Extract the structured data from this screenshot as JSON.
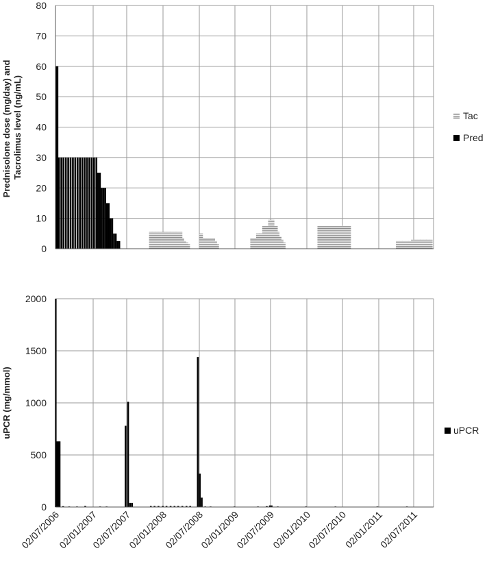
{
  "chart_data": [
    {
      "type": "bar",
      "ylabel": "Prednisolone dose (mg/day) and Tacrolimus level (ng/mL)",
      "ylabel_lines": [
        "Prednisolone dose (mg/day) and",
        "Tacrolimus level (ng/mL)"
      ],
      "ylim": [
        0,
        80
      ],
      "yticks": [
        0,
        10,
        20,
        30,
        40,
        50,
        60,
        70,
        80
      ],
      "xlim": [
        "2006-07-02",
        "2011-10-15"
      ],
      "grid": true,
      "legend_position": "right",
      "series": [
        {
          "name": "Tac",
          "pattern": "horizontal-stripes",
          "color": "#8c8c8c",
          "points": [
            [
              "2007-11-01",
              5.5
            ],
            [
              "2007-11-15",
              5.5
            ],
            [
              "2007-12-01",
              5.5
            ],
            [
              "2007-12-15",
              5.5
            ],
            [
              "2008-01-01",
              5.5
            ],
            [
              "2008-01-15",
              5.5
            ],
            [
              "2008-02-01",
              5.5
            ],
            [
              "2008-02-15",
              5.5
            ],
            [
              "2008-03-01",
              5.5
            ],
            [
              "2008-03-15",
              5.5
            ],
            [
              "2008-04-01",
              5.5
            ],
            [
              "2008-04-10",
              3.5
            ],
            [
              "2008-04-20",
              2.5
            ],
            [
              "2008-05-01",
              2.0
            ],
            [
              "2008-05-10",
              1.5
            ],
            [
              "2008-07-15",
              5.0
            ],
            [
              "2008-07-25",
              3.5
            ],
            [
              "2008-08-05",
              3.5
            ],
            [
              "2008-08-15",
              3.5
            ],
            [
              "2008-08-25",
              3.5
            ],
            [
              "2008-09-05",
              3.5
            ],
            [
              "2008-09-15",
              3.5
            ],
            [
              "2008-09-25",
              2.5
            ],
            [
              "2008-10-05",
              1.5
            ],
            [
              "2009-04-01",
              3.5
            ],
            [
              "2009-04-15",
              3.5
            ],
            [
              "2009-05-01",
              5.0
            ],
            [
              "2009-05-15",
              5.0
            ],
            [
              "2009-06-01",
              7.5
            ],
            [
              "2009-06-15",
              7.5
            ],
            [
              "2009-07-01",
              9.5
            ],
            [
              "2009-07-15",
              9.5
            ],
            [
              "2009-08-01",
              7.5
            ],
            [
              "2009-08-10",
              5.5
            ],
            [
              "2009-08-20",
              4.0
            ],
            [
              "2009-08-30",
              3.0
            ],
            [
              "2009-09-10",
              2.0
            ],
            [
              "2010-03-10",
              7.5
            ],
            [
              "2010-03-25",
              7.5
            ],
            [
              "2010-04-10",
              7.5
            ],
            [
              "2010-04-25",
              7.5
            ],
            [
              "2010-05-10",
              7.5
            ],
            [
              "2010-05-25",
              7.5
            ],
            [
              "2010-06-10",
              7.5
            ],
            [
              "2010-06-25",
              7.5
            ],
            [
              "2010-07-10",
              7.5
            ],
            [
              "2010-07-25",
              7.5
            ],
            [
              "2010-08-10",
              7.5
            ],
            [
              "2011-04-15",
              2.5
            ],
            [
              "2011-05-01",
              2.5
            ],
            [
              "2011-05-15",
              2.5
            ],
            [
              "2011-06-01",
              2.5
            ],
            [
              "2011-06-15",
              2.5
            ],
            [
              "2011-07-01",
              3.0
            ],
            [
              "2011-07-15",
              3.0
            ],
            [
              "2011-08-01",
              3.0
            ],
            [
              "2011-08-15",
              3.0
            ],
            [
              "2011-09-01",
              3.0
            ],
            [
              "2011-09-15",
              3.0
            ],
            [
              "2011-10-01",
              3.0
            ]
          ]
        },
        {
          "name": "Pred",
          "pattern": "solid",
          "color": "#000000",
          "points": [
            [
              "2006-07-05",
              60
            ],
            [
              "2006-07-12",
              60
            ],
            [
              "2006-07-20",
              30
            ],
            [
              "2006-08-01",
              30
            ],
            [
              "2006-08-12",
              30
            ],
            [
              "2006-08-24",
              30
            ],
            [
              "2006-09-05",
              30
            ],
            [
              "2006-09-17",
              30
            ],
            [
              "2006-09-29",
              30
            ],
            [
              "2006-10-11",
              30
            ],
            [
              "2006-10-23",
              30
            ],
            [
              "2006-11-04",
              30
            ],
            [
              "2006-11-16",
              30
            ],
            [
              "2006-11-28",
              30
            ],
            [
              "2006-12-10",
              30
            ],
            [
              "2006-12-22",
              30
            ],
            [
              "2007-01-03",
              30
            ],
            [
              "2007-01-15",
              30
            ],
            [
              "2007-01-27",
              30
            ],
            [
              "2007-02-05",
              25
            ],
            [
              "2007-02-14",
              25
            ],
            [
              "2007-02-23",
              20
            ],
            [
              "2007-03-04",
              20
            ],
            [
              "2007-03-13",
              20
            ],
            [
              "2007-03-22",
              15
            ],
            [
              "2007-03-31",
              15
            ],
            [
              "2007-04-09",
              10
            ],
            [
              "2007-04-18",
              10
            ],
            [
              "2007-04-27",
              5
            ],
            [
              "2007-05-06",
              5
            ],
            [
              "2007-05-15",
              2.5
            ],
            [
              "2007-05-24",
              2.5
            ]
          ]
        }
      ]
    },
    {
      "type": "bar",
      "ylabel": "uPCR (mg/mmol)",
      "ylim": [
        0,
        2000
      ],
      "yticks": [
        0,
        500,
        1000,
        1500,
        2000
      ],
      "xlim": [
        "2006-07-02",
        "2011-10-15"
      ],
      "xticks": [
        "02/07/2006",
        "02/01/2007",
        "02/07/2007",
        "02/01/2008",
        "02/07/2008",
        "02/01/2009",
        "02/07/2009",
        "02/01/2010",
        "02/07/2010",
        "02/01/2011",
        "02/07/2011"
      ],
      "grid": true,
      "legend_position": "right",
      "series": [
        {
          "name": "uPCR",
          "pattern": "solid",
          "color": "#000000",
          "points": [
            [
              "2006-07-03",
              2000
            ],
            [
              "2006-07-09",
              630
            ],
            [
              "2006-07-16",
              630
            ],
            [
              "2006-07-23",
              630
            ],
            [
              "2006-08-10",
              8
            ],
            [
              "2006-09-10",
              5
            ],
            [
              "2006-10-20",
              5
            ],
            [
              "2006-12-01",
              10
            ],
            [
              "2007-02-15",
              5
            ],
            [
              "2007-03-20",
              5
            ],
            [
              "2007-06-25",
              780
            ],
            [
              "2007-07-08",
              1010
            ],
            [
              "2007-07-18",
              40
            ],
            [
              "2007-07-28",
              40
            ],
            [
              "2007-11-01",
              10
            ],
            [
              "2007-11-20",
              10
            ],
            [
              "2007-12-10",
              10
            ],
            [
              "2008-01-01",
              10
            ],
            [
              "2008-01-20",
              10
            ],
            [
              "2008-02-10",
              10
            ],
            [
              "2008-03-01",
              10
            ],
            [
              "2008-03-20",
              10
            ],
            [
              "2008-04-10",
              10
            ],
            [
              "2008-05-01",
              10
            ],
            [
              "2008-05-20",
              10
            ],
            [
              "2008-06-28",
              1440
            ],
            [
              "2008-07-08",
              320
            ],
            [
              "2008-07-18",
              90
            ],
            [
              "2008-08-05",
              5
            ],
            [
              "2008-09-01",
              5
            ],
            [
              "2009-01-01",
              5
            ],
            [
              "2009-05-01",
              5
            ],
            [
              "2009-06-15",
              8
            ],
            [
              "2009-07-01",
              15
            ],
            [
              "2009-07-10",
              15
            ],
            [
              "2009-08-10",
              5
            ],
            [
              "2010-01-01",
              5
            ],
            [
              "2010-06-01",
              5
            ],
            [
              "2011-01-01",
              5
            ],
            [
              "2011-06-01",
              5
            ]
          ]
        }
      ]
    }
  ]
}
